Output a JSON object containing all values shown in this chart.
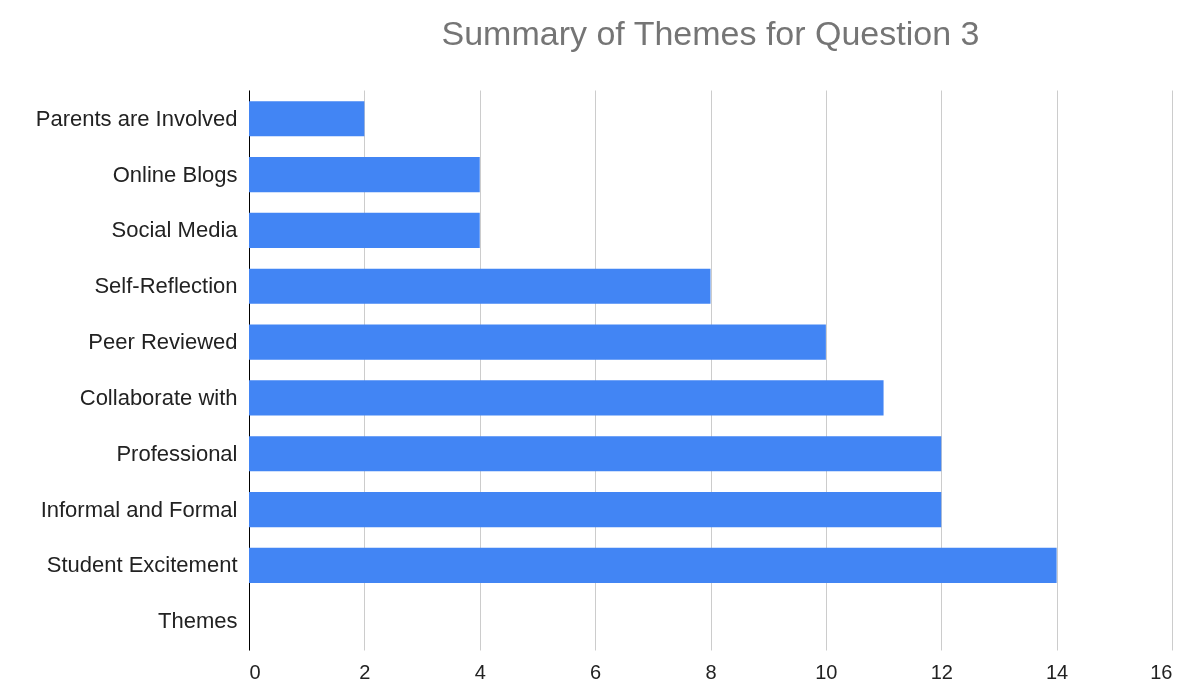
{
  "chart_data": {
    "type": "bar",
    "orientation": "horizontal",
    "title": "Summary of Themes for Question 3",
    "categories": [
      "Parents are Involved",
      "Online Blogs",
      "Social Media",
      "Self-Reflection",
      "Peer Reviewed",
      "Collaborate with",
      "Professional",
      "Informal and Formal",
      "Student Excitement",
      "Themes"
    ],
    "values": [
      2,
      4,
      4,
      8,
      10,
      11,
      12,
      12,
      14,
      null
    ],
    "color": "#4285f4",
    "xlim": [
      0,
      16
    ],
    "xticks": [
      0,
      2,
      4,
      6,
      8,
      10,
      12,
      14,
      16
    ],
    "grid": "x"
  }
}
